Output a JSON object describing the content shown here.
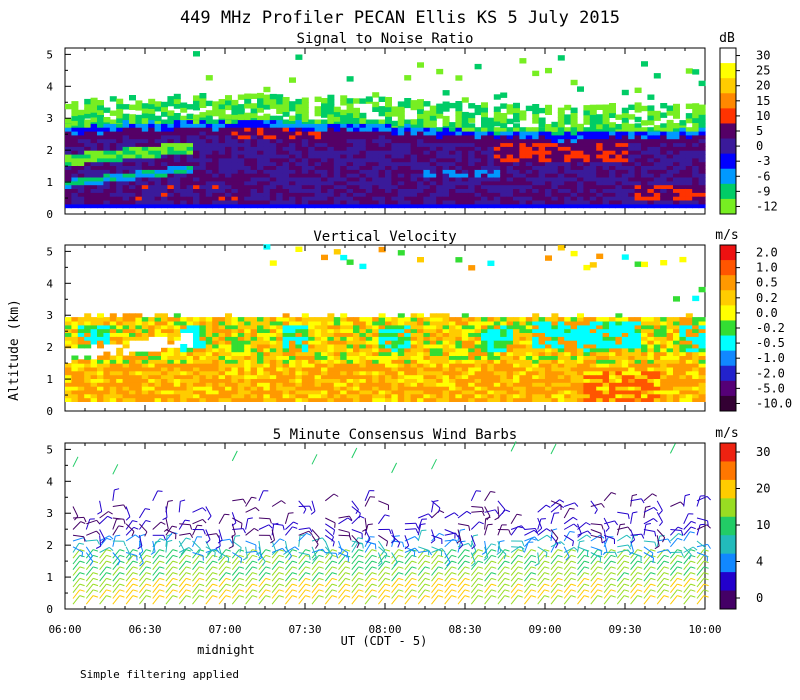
{
  "title": "449 MHz Profiler PECAN Ellis KS  5 July 2015",
  "y_axis_label": "Altitude (km)",
  "x_axis_label": "UT  (CDT - 5)",
  "midnight_label": "midnight",
  "footnote": "Simple filtering applied",
  "chart_data": [
    {
      "type": "heatmap",
      "title": "Signal to Noise Ratio",
      "units": "dB",
      "x_ticks": [
        "06:00",
        "06:30",
        "07:00",
        "07:30",
        "08:00",
        "08:30",
        "09:00",
        "09:30",
        "10:00"
      ],
      "y_ticks": [
        "0",
        "1",
        "2",
        "3",
        "4",
        "5"
      ],
      "ylim": [
        0,
        5.2
      ],
      "legend_labels": [
        "30",
        "25",
        "20",
        "15",
        "10",
        "5",
        "0",
        "-3",
        "-6",
        "-9",
        "-12"
      ],
      "colors": [
        "#ffffff",
        "#ffff00",
        "#ffcc00",
        "#ff8800",
        "#ff3300",
        "#550066",
        "#3a1a9a",
        "#0000ff",
        "#0099ff",
        "#00cc66",
        "#77ee22"
      ]
    },
    {
      "type": "heatmap",
      "title": "Vertical Velocity",
      "units": "m/s",
      "x_ticks": [
        "06:00",
        "06:30",
        "07:00",
        "07:30",
        "08:00",
        "08:30",
        "09:00",
        "09:30",
        "10:00"
      ],
      "y_ticks": [
        "0",
        "1",
        "2",
        "3",
        "4",
        "5"
      ],
      "ylim": [
        0,
        5.2
      ],
      "legend_labels": [
        "2.0",
        "1.0",
        "0.5",
        "0.2",
        "0.0",
        "-0.2",
        "-0.5",
        "-1.0",
        "-2.0",
        "-5.0",
        "-10.0"
      ],
      "colors": [
        "#ee1111",
        "#ff5500",
        "#ff9900",
        "#ffcc00",
        "#ffff00",
        "#33dd33",
        "#00ffff",
        "#1188ff",
        "#2222cc",
        "#550077",
        "#330033"
      ]
    },
    {
      "type": "wind-barbs",
      "title": "5 Minute Consensus Wind Barbs",
      "units": "m/s",
      "x_ticks": [
        "06:00",
        "06:30",
        "07:00",
        "07:30",
        "08:00",
        "08:30",
        "09:00",
        "09:30",
        "10:00"
      ],
      "y_ticks": [
        "0",
        "1",
        "2",
        "3",
        "4",
        "5"
      ],
      "ylim": [
        0,
        5.2
      ],
      "legend_labels": [
        "30",
        "20",
        "10",
        "4",
        "0"
      ],
      "colors": [
        "#ee2211",
        "#ff7700",
        "#ffcc00",
        "#99dd22",
        "#22cc66",
        "#22bbbb",
        "#1188ff",
        "#2200cc",
        "#440066"
      ]
    }
  ]
}
